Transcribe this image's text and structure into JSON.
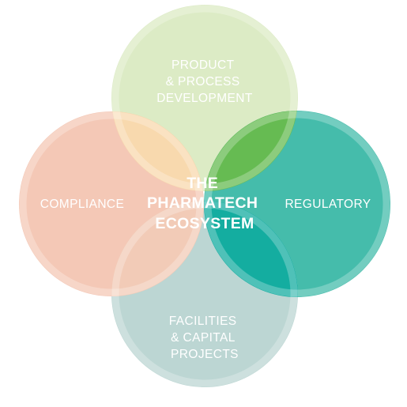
{
  "diagram": {
    "center_title": [
      "THE",
      "PHARMATECH",
      "ECOSYSTEM"
    ],
    "circles": {
      "product": {
        "label": [
          "PRODUCT",
          "& PROCESS",
          "DEVELOPMENT"
        ],
        "color": "#dcebc5"
      },
      "compliance": {
        "label": [
          "COMPLIANCE"
        ],
        "color": "#f4c8b6"
      },
      "regulatory": {
        "label": [
          "REGULATORY"
        ],
        "color": "#45bcab"
      },
      "facilities": {
        "label": [
          "FACILITIES",
          "& CAPITAL",
          "PROJECTS"
        ],
        "color": "#bcd6d3"
      }
    },
    "overlap_colors": {
      "product_compliance": "#f8d9ae",
      "product_regulatory": "#66bb52",
      "regulatory_facilities": "#14ada0",
      "compliance_facilities": "#f2cbb7"
    },
    "ring_color": "#ffffff"
  }
}
